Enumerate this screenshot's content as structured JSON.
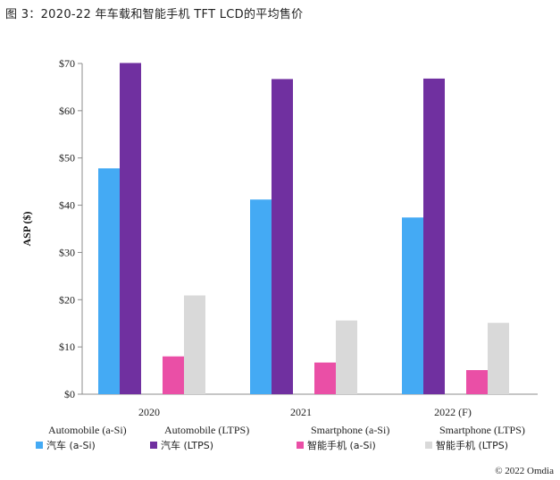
{
  "page": {
    "title": "图 3：2020-22 年车载和智能手机 TFT LCD的平均售价"
  },
  "chart_data": {
    "type": "bar",
    "categories": [
      "2020",
      "2021",
      "2022 (F)"
    ],
    "series": [
      {
        "name": "汽车 (a-Si)",
        "color": "#44aaf4",
        "values": [
          47.8,
          41.2,
          37.4
        ]
      },
      {
        "name": "汽车 (LTPS)",
        "color": "#7030a0",
        "values": [
          70.1,
          66.7,
          66.8
        ]
      },
      {
        "name": "智能手机 (a-Si)",
        "color": "#ea4fa6",
        "values": [
          8.0,
          6.7,
          5.1
        ]
      },
      {
        "name": "智能手机 (LTPS)",
        "color": "#d9d9d9",
        "values": [
          20.9,
          15.6,
          15.1
        ]
      }
    ],
    "ylabel": "ASP ($)",
    "ylim": [
      0,
      70
    ],
    "yticks": [
      "$0",
      "$10",
      "$20",
      "$30",
      "$40",
      "$50",
      "$60",
      "$70"
    ],
    "grid": false,
    "legend_position": "bottom",
    "legend_headers": [
      "Automobile (a-Si)",
      "Automobile (LTPS)",
      "Smartphone (a-Si)",
      "Smartphone (LTPS)"
    ],
    "source": "© 2022 Omdia"
  }
}
